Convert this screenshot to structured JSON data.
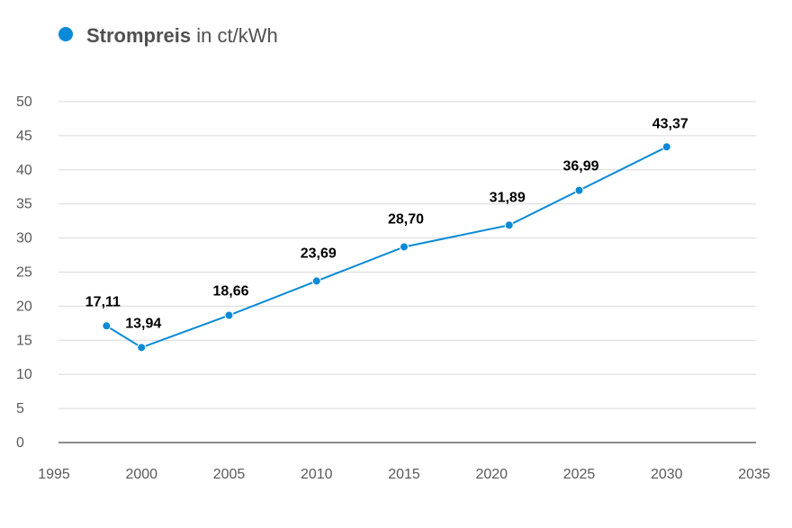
{
  "chart_data": {
    "type": "line",
    "title_bold": "Strompreis",
    "title_rest": " in ct/kWh",
    "xlabel": "",
    "ylabel": "",
    "xlim": [
      1995,
      2035
    ],
    "ylim": [
      0,
      50
    ],
    "x_ticks": [
      1995,
      2000,
      2005,
      2010,
      2015,
      2020,
      2025,
      2030,
      2035
    ],
    "y_ticks": [
      0,
      5,
      10,
      15,
      20,
      25,
      30,
      35,
      40,
      45,
      50
    ],
    "grid": true,
    "legend": "top-left",
    "series": [
      {
        "color": "#0a8ad6",
        "points": [
          {
            "x": 1998,
            "y": 17.11,
            "label": "17,11",
            "label_color": "#000000"
          },
          {
            "x": 2000,
            "y": 13.94,
            "label": "13,94",
            "label_color": "#000000"
          },
          {
            "x": 2005,
            "y": 18.66,
            "label": "18,66",
            "label_color": "#000000"
          },
          {
            "x": 2010,
            "y": 23.69,
            "label": "23,69",
            "label_color": "#000000"
          },
          {
            "x": 2015,
            "y": 28.7,
            "label": "28,70",
            "label_color": "#000000"
          },
          {
            "x": 2021,
            "y": 31.89,
            "label": "31,89",
            "label_color": "#e36c1d"
          },
          {
            "x": 2025,
            "y": 36.99,
            "label": "36,99",
            "label_color": "#000000"
          },
          {
            "x": 2030,
            "y": 43.37,
            "label": "43,37",
            "label_color": "#000000"
          }
        ]
      }
    ]
  }
}
